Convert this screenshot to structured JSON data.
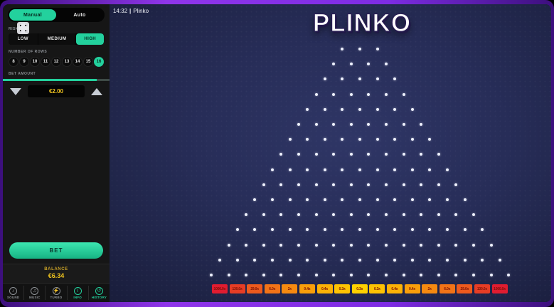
{
  "topbar": {
    "time": "14:32",
    "separator": "|",
    "game_name": "Plinko"
  },
  "logo": {
    "text": "PLINKO"
  },
  "sidebar": {
    "mode_tabs": [
      {
        "label": "Manual",
        "active": true
      },
      {
        "label": "Auto",
        "active": false
      }
    ],
    "risk": {
      "label": "RISK",
      "options": [
        {
          "label": "LOW",
          "active": false
        },
        {
          "label": "MEDIUM",
          "active": false
        },
        {
          "label": "HIGH",
          "active": true
        }
      ]
    },
    "rows": {
      "label": "NUMBER OF ROWS",
      "options": [
        "8",
        "9",
        "10",
        "11",
        "12",
        "13",
        "14",
        "15",
        "16"
      ],
      "selected": "16"
    },
    "bet": {
      "label": "BET AMOUNT",
      "value": "€2.00"
    },
    "bet_button": {
      "label": "BET"
    },
    "balance": {
      "label": "BALANCE",
      "value": "€6.34"
    },
    "nav": [
      {
        "icon": "sound-icon",
        "label": "SOUND",
        "active": false
      },
      {
        "icon": "music-icon",
        "label": "MUSIC",
        "active": false
      },
      {
        "icon": "turbo-icon",
        "label": "TURBO",
        "active": false
      },
      {
        "icon": "info-icon",
        "label": "INFO",
        "active": true
      },
      {
        "icon": "history-icon",
        "label": "HISTORY",
        "active": true
      }
    ]
  },
  "board": {
    "rows": 16,
    "top_pegs": 3,
    "peg_color": "#eef1ff"
  },
  "slots": {
    "values": [
      "1000.0x",
      "130.0x",
      "29.0x",
      "6.0x",
      "2x",
      "0.4x",
      "0.4x",
      "0.3x",
      "0.3x",
      "0.3x",
      "0.4x",
      "0.4x",
      "2x",
      "6.0x",
      "29.0x",
      "130.0x",
      "1000.0x"
    ],
    "colors": [
      "#e01c30",
      "#e63d25",
      "#ed5a1d",
      "#f27317",
      "#f68a10",
      "#f99f0a",
      "#fbb206",
      "#fdc303",
      "#ffd100",
      "#fdc303",
      "#fbb206",
      "#f99f0a",
      "#f68a10",
      "#f27317",
      "#ed5a1d",
      "#e63d25",
      "#e01c30"
    ],
    "text_color": "#7c1206"
  },
  "colors": {
    "accent": "#23d19d",
    "gold": "#f0c41f",
    "frame_purple": "#7e2ce4",
    "game_bg": "#272d58",
    "sidebar_bg": "#161616"
  }
}
